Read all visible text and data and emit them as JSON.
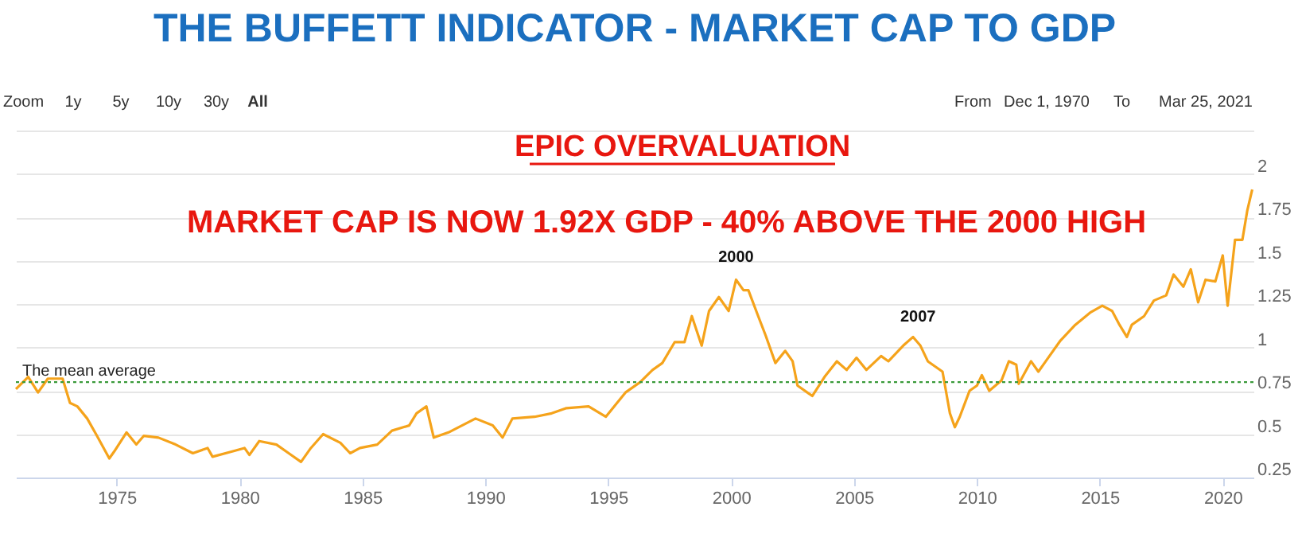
{
  "chart_data": {
    "type": "line",
    "title": "THE BUFFETT INDICATOR - MARKET CAP TO GDP",
    "x": [
      1970.9,
      1971.4,
      1971.8,
      1972.2,
      1972.8,
      1973.1,
      1973.4,
      1973.8,
      1974.2,
      1974.7,
      1974.9,
      1975.4,
      1975.8,
      1976.1,
      1976.7,
      1977.4,
      1978.1,
      1978.7,
      1978.9,
      1979.7,
      1980.2,
      1980.4,
      1980.8,
      1981.5,
      1982.0,
      1982.5,
      1982.9,
      1983.4,
      1984.1,
      1984.5,
      1984.9,
      1985.6,
      1986.2,
      1986.9,
      1987.2,
      1987.6,
      1987.9,
      1988.5,
      1989.6,
      1990.3,
      1990.7,
      1991.1,
      1992.0,
      1992.7,
      1993.3,
      1994.2,
      1994.9,
      1995.7,
      1996.3,
      1996.8,
      1997.2,
      1997.7,
      1998.1,
      1998.4,
      1998.8,
      1999.1,
      1999.5,
      1999.9,
      2000.2,
      2000.5,
      2000.7,
      2001.1,
      2001.4,
      2001.8,
      2002.2,
      2002.5,
      2002.7,
      2003.3,
      2003.8,
      2004.3,
      2004.7,
      2005.1,
      2005.5,
      2006.1,
      2006.4,
      2007.0,
      2007.4,
      2007.7,
      2008.0,
      2008.6,
      2008.9,
      2009.1,
      2009.3,
      2009.7,
      2010.0,
      2010.2,
      2010.5,
      2011.0,
      2011.3,
      2011.6,
      2011.7,
      2012.2,
      2012.5,
      2012.8,
      2013.4,
      2014.0,
      2014.6,
      2015.1,
      2015.5,
      2015.8,
      2016.1,
      2016.3,
      2016.8,
      2017.2,
      2017.7,
      2018.0,
      2018.4,
      2018.7,
      2019.0,
      2019.3,
      2019.7,
      2020.0,
      2020.2,
      2020.5,
      2020.8,
      2021.0,
      2021.2
    ],
    "series": [
      {
        "color": "#f5a31b",
        "values": [
          0.76,
          0.83,
          0.74,
          0.82,
          0.82,
          0.68,
          0.66,
          0.59,
          0.49,
          0.36,
          0.4,
          0.51,
          0.44,
          0.49,
          0.48,
          0.44,
          0.39,
          0.42,
          0.37,
          0.4,
          0.42,
          0.38,
          0.46,
          0.44,
          0.39,
          0.34,
          0.42,
          0.5,
          0.45,
          0.39,
          0.42,
          0.44,
          0.52,
          0.55,
          0.62,
          0.66,
          0.48,
          0.51,
          0.59,
          0.55,
          0.48,
          0.59,
          0.6,
          0.62,
          0.65,
          0.66,
          0.6,
          0.74,
          0.8,
          0.87,
          0.91,
          1.03,
          1.03,
          1.18,
          1.01,
          1.21,
          1.29,
          1.21,
          1.39,
          1.33,
          1.33,
          1.18,
          1.07,
          0.91,
          0.98,
          0.92,
          0.78,
          0.72,
          0.83,
          0.92,
          0.87,
          0.94,
          0.87,
          0.95,
          0.92,
          1.01,
          1.06,
          1.01,
          0.92,
          0.86,
          0.62,
          0.54,
          0.6,
          0.75,
          0.78,
          0.84,
          0.75,
          0.81,
          0.92,
          0.9,
          0.79,
          0.92,
          0.86,
          0.92,
          1.04,
          1.13,
          1.2,
          1.24,
          1.21,
          1.13,
          1.06,
          1.13,
          1.18,
          1.27,
          1.3,
          1.42,
          1.35,
          1.45,
          1.26,
          1.39,
          1.38,
          1.53,
          1.24,
          1.62,
          1.62,
          1.79,
          1.91
        ]
      }
    ],
    "xlim": [
      1970.9,
      2021.25
    ],
    "xticks": [
      1975,
      1980,
      1985,
      1990,
      1995,
      2000,
      2005,
      2010,
      2015,
      2020
    ],
    "ylim": [
      0.25,
      2.25
    ],
    "yticks": [
      0.25,
      0.5,
      0.75,
      1,
      1.25,
      1.5,
      1.75,
      2,
      {
        "value": 2.25,
        "label": null
      }
    ],
    "grid": "y",
    "legend": false,
    "marker": "none",
    "line_style": "solid",
    "ref_lines": [
      {
        "axis": "y",
        "value": 0.8,
        "label": "The mean average",
        "color": "#3a9a3a",
        "line_style": "dotted"
      }
    ],
    "annotations": [
      "EPIC OVERVALUATION",
      "MARKET CAP IS NOW 1.92X GDP - 40% ABOVE THE 2000 HIGH",
      {
        "text": "2000",
        "x": 2000.2,
        "y": 1.39
      },
      {
        "text": "2007",
        "x": 2007.6,
        "y": 1.05
      },
      "Zoom",
      "1y",
      "5y",
      "10y",
      "30y",
      "All",
      "From",
      "Dec 1, 1970",
      "To",
      "Mar 25, 2021"
    ]
  }
}
